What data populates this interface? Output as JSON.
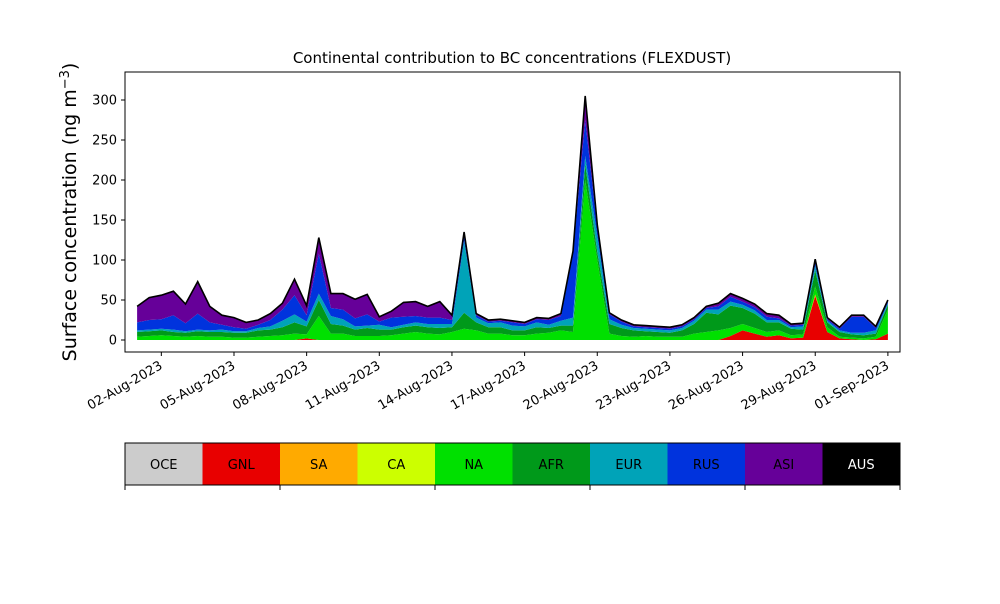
{
  "chart_data": {
    "type": "area",
    "stacked": true,
    "title": "Continental contribution to BC concentrations (FLEXDUST)",
    "ylabel": "Surface concentration (ng m⁻³)",
    "ylabel_parts": {
      "text": "Surface concentration (ng m",
      "sup": "−3",
      "close": ")"
    },
    "xlabel": "",
    "ylim": [
      -15,
      335
    ],
    "yticks": [
      0,
      50,
      100,
      150,
      200,
      250,
      300
    ],
    "xlim": [
      "2023-07-31T12:00",
      "2023-09-01T12:00"
    ],
    "xticks": [
      {
        "date": "2023-08-02",
        "label": "02-Aug-2023"
      },
      {
        "date": "2023-08-05",
        "label": "05-Aug-2023"
      },
      {
        "date": "2023-08-08",
        "label": "08-Aug-2023"
      },
      {
        "date": "2023-08-11",
        "label": "11-Aug-2023"
      },
      {
        "date": "2023-08-14",
        "label": "14-Aug-2023"
      },
      {
        "date": "2023-08-17",
        "label": "17-Aug-2023"
      },
      {
        "date": "2023-08-20",
        "label": "20-Aug-2023"
      },
      {
        "date": "2023-08-23",
        "label": "23-Aug-2023"
      },
      {
        "date": "2023-08-26",
        "label": "26-Aug-2023"
      },
      {
        "date": "2023-08-29",
        "label": "29-Aug-2023"
      },
      {
        "date": "2023-09-01",
        "label": "01-Sep-2023"
      }
    ],
    "grid": false,
    "legend": {
      "placement": "bottom",
      "entries": [
        {
          "name": "OCE",
          "color": "#cccccc"
        },
        {
          "name": "GNL",
          "color": "#e80000"
        },
        {
          "name": "SA",
          "color": "#ffaa00"
        },
        {
          "name": "CA",
          "color": "#ccff00"
        },
        {
          "name": "NA",
          "color": "#00e000"
        },
        {
          "name": "AFR",
          "color": "#00991a"
        },
        {
          "name": "EUR",
          "color": "#00a3b8"
        },
        {
          "name": "RUS",
          "color": "#0033dd"
        },
        {
          "name": "ASI",
          "color": "#660099"
        },
        {
          "name": "AUS",
          "color": "#000000"
        }
      ]
    },
    "x": [
      "2023-08-01",
      "2023-08-01T12:00",
      "2023-08-02",
      "2023-08-02T12:00",
      "2023-08-03",
      "2023-08-03T12:00",
      "2023-08-04",
      "2023-08-04T12:00",
      "2023-08-05",
      "2023-08-05T12:00",
      "2023-08-06",
      "2023-08-06T12:00",
      "2023-08-07",
      "2023-08-07T12:00",
      "2023-08-08",
      "2023-08-08T12:00",
      "2023-08-09",
      "2023-08-09T12:00",
      "2023-08-10",
      "2023-08-10T12:00",
      "2023-08-11",
      "2023-08-11T12:00",
      "2023-08-12",
      "2023-08-12T12:00",
      "2023-08-13",
      "2023-08-13T12:00",
      "2023-08-14",
      "2023-08-14T12:00",
      "2023-08-15",
      "2023-08-15T12:00",
      "2023-08-16",
      "2023-08-16T12:00",
      "2023-08-17",
      "2023-08-17T12:00",
      "2023-08-18",
      "2023-08-18T12:00",
      "2023-08-19",
      "2023-08-19T12:00",
      "2023-08-20",
      "2023-08-20T12:00",
      "2023-08-21",
      "2023-08-21T12:00",
      "2023-08-22",
      "2023-08-22T12:00",
      "2023-08-23",
      "2023-08-23T12:00",
      "2023-08-24",
      "2023-08-24T12:00",
      "2023-08-25",
      "2023-08-25T12:00",
      "2023-08-26",
      "2023-08-26T12:00",
      "2023-08-27",
      "2023-08-27T12:00",
      "2023-08-28",
      "2023-08-28T12:00",
      "2023-08-29",
      "2023-08-29T12:00",
      "2023-08-30",
      "2023-08-30T12:00",
      "2023-08-31",
      "2023-08-31T12:00",
      "2023-09-01"
    ],
    "series": [
      {
        "name": "OCE",
        "values": [
          0,
          0,
          0,
          0,
          0,
          0,
          0,
          0,
          0,
          0,
          0,
          0,
          0,
          0,
          0,
          0,
          0,
          0,
          0,
          0,
          0,
          0,
          0,
          0,
          0,
          0,
          0,
          0,
          0,
          0,
          0,
          0,
          0,
          0,
          0,
          0,
          0,
          0,
          0,
          0,
          0,
          0,
          0,
          0,
          0,
          0,
          0,
          0,
          0,
          0,
          0,
          0,
          0,
          0,
          0,
          0,
          0,
          0,
          0,
          0,
          0,
          0,
          0
        ]
      },
      {
        "name": "GNL",
        "values": [
          0,
          0,
          0,
          0,
          0,
          0,
          0,
          0,
          0,
          0,
          0,
          0,
          0,
          0,
          2,
          0,
          0,
          0,
          0,
          0,
          0,
          0,
          0,
          0,
          0,
          0,
          0,
          0,
          0,
          0,
          0,
          0,
          0,
          0,
          0,
          0,
          0,
          0,
          0,
          0,
          0,
          0,
          0,
          0,
          0,
          0,
          0,
          0,
          0,
          5,
          12,
          8,
          4,
          6,
          2,
          3,
          55,
          10,
          2,
          1,
          0,
          1,
          8
        ]
      },
      {
        "name": "SA",
        "values": [
          0,
          0,
          0,
          0,
          0,
          0,
          0,
          0,
          0,
          0,
          0,
          0,
          0,
          0,
          0,
          0,
          0,
          0,
          0,
          0,
          0,
          0,
          0,
          0,
          0,
          0,
          0,
          0,
          0,
          0,
          0,
          0,
          0,
          0,
          0,
          0,
          0,
          0,
          0,
          0,
          0,
          0,
          0,
          0,
          0,
          0,
          0,
          0,
          0,
          0,
          0,
          0,
          0,
          0,
          0,
          0,
          2,
          0,
          0,
          0,
          0,
          0,
          0
        ]
      },
      {
        "name": "CA",
        "values": [
          0,
          0,
          0,
          0,
          0,
          0,
          0,
          0,
          0,
          0,
          0,
          0,
          0,
          0,
          0,
          0,
          0,
          0,
          0,
          0,
          0,
          0,
          0,
          0,
          0,
          0,
          0,
          0,
          0,
          0,
          0,
          0,
          0,
          0,
          0,
          0,
          0,
          0,
          0,
          0,
          0,
          0,
          0,
          0,
          0,
          0,
          0,
          0,
          0,
          0,
          0,
          0,
          0,
          0,
          0,
          0,
          0,
          0,
          0,
          0,
          0,
          0,
          0
        ]
      },
      {
        "name": "NA",
        "values": [
          4,
          5,
          6,
          5,
          4,
          5,
          4,
          4,
          3,
          3,
          4,
          5,
          6,
          8,
          5,
          30,
          8,
          8,
          5,
          5,
          5,
          6,
          8,
          10,
          8,
          7,
          10,
          14,
          12,
          8,
          8,
          6,
          6,
          8,
          9,
          12,
          10,
          200,
          100,
          8,
          5,
          4,
          5,
          4,
          4,
          4,
          8,
          10,
          12,
          10,
          8,
          7,
          6,
          6,
          4,
          4,
          10,
          6,
          2,
          2,
          2,
          3,
          30
        ]
      },
      {
        "name": "AFR",
        "values": [
          6,
          6,
          6,
          5,
          5,
          6,
          6,
          6,
          6,
          6,
          8,
          8,
          10,
          14,
          10,
          20,
          12,
          10,
          8,
          10,
          8,
          7,
          8,
          8,
          8,
          8,
          6,
          20,
          10,
          8,
          8,
          6,
          6,
          8,
          6,
          6,
          8,
          20,
          10,
          12,
          10,
          8,
          6,
          6,
          5,
          8,
          12,
          24,
          20,
          28,
          20,
          18,
          12,
          10,
          8,
          6,
          20,
          6,
          6,
          4,
          4,
          4,
          6
        ]
      },
      {
        "name": "EUR",
        "values": [
          2,
          2,
          2,
          3,
          2,
          2,
          2,
          3,
          2,
          2,
          3,
          4,
          8,
          10,
          6,
          8,
          10,
          8,
          4,
          3,
          6,
          3,
          3,
          4,
          4,
          5,
          4,
          90,
          6,
          5,
          6,
          6,
          5,
          6,
          4,
          6,
          10,
          10,
          20,
          6,
          4,
          3,
          3,
          3,
          3,
          3,
          4,
          4,
          6,
          5,
          4,
          4,
          3,
          3,
          2,
          4,
          6,
          2,
          2,
          2,
          3,
          4,
          2
        ]
      },
      {
        "name": "RUS",
        "values": [
          10,
          12,
          12,
          18,
          10,
          20,
          10,
          6,
          5,
          3,
          4,
          8,
          14,
          24,
          8,
          50,
          10,
          12,
          10,
          14,
          4,
          12,
          10,
          8,
          8,
          8,
          5,
          6,
          3,
          2,
          2,
          4,
          3,
          4,
          6,
          6,
          80,
          45,
          10,
          6,
          4,
          2,
          2,
          2,
          2,
          2,
          2,
          2,
          4,
          6,
          4,
          4,
          4,
          2,
          2,
          2,
          4,
          2,
          2,
          20,
          20,
          3,
          2
        ]
      },
      {
        "name": "ASI",
        "values": [
          20,
          28,
          30,
          30,
          24,
          40,
          20,
          12,
          12,
          8,
          6,
          8,
          8,
          20,
          12,
          20,
          18,
          20,
          24,
          25,
          6,
          8,
          18,
          18,
          14,
          20,
          6,
          5,
          2,
          2,
          2,
          2,
          2,
          2,
          2,
          3,
          3,
          30,
          4,
          2,
          2,
          2,
          2,
          2,
          2,
          2,
          2,
          2,
          4,
          4,
          4,
          4,
          4,
          4,
          2,
          2,
          4,
          2,
          2,
          2,
          2,
          2,
          2
        ]
      },
      {
        "name": "AUS",
        "values": [
          0,
          0,
          0,
          0,
          0,
          0,
          0,
          0,
          0,
          0,
          0,
          0,
          0,
          0,
          0,
          0,
          0,
          0,
          0,
          0,
          0,
          0,
          0,
          0,
          0,
          0,
          0,
          0,
          0,
          0,
          0,
          0,
          0,
          0,
          0,
          0,
          0,
          0,
          0,
          0,
          0,
          0,
          0,
          0,
          0,
          0,
          0,
          0,
          0,
          0,
          0,
          0,
          0,
          0,
          0,
          0,
          0,
          0,
          0,
          0,
          0,
          0,
          0
        ]
      }
    ]
  }
}
